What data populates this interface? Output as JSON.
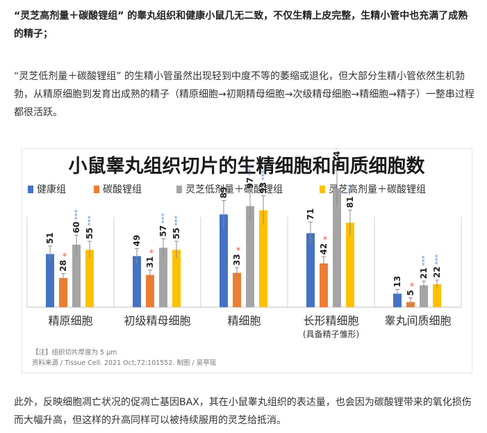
{
  "article": {
    "p1": "“灵芝高剂量＋碳酸锂组” 的睾丸组织和健康小鼠几无二致，不仅生精上皮完整，生精小管中也充满了成熟的精子；",
    "p2": "“灵芝低剂量＋碳酸锂组” 的生精小管虽然出现轻到中度不等的萎缩或退化，但大部分生精小管依然生机勃勃，从精原细胞到发育出成熟的精子（精原细胞→初期精母细胞→次级精母细胞→精细胞→精子）一整串过程都很活跃。",
    "p3": "此外，反映细胞凋亡状况的促凋亡基因BAX，其在小鼠睾丸组织的表达量，也会因为碳酸锂带来的氧化损伤而大幅升高，但这样的升高同样可以被持续服用的灵芝给抵消。"
  },
  "chart_data": {
    "type": "bar",
    "title": "小鼠睾丸组织切片的生精细胞和间质细胞数",
    "categories": [
      "精原细胞",
      "初级精母细胞",
      "精细胞",
      "长形精细胞",
      "睾丸间质细胞"
    ],
    "category_sublabels": [
      "",
      "",
      "",
      "(具备精子雏形)",
      ""
    ],
    "series": [
      {
        "name": "健康组",
        "color": "#4472c4",
        "values": [
          51,
          49,
          89,
          71,
          13
        ]
      },
      {
        "name": "碳酸锂组",
        "color": "#ed7d31",
        "values": [
          28,
          31,
          33,
          42,
          5
        ]
      },
      {
        "name": "灵芝低剂量＋碳酸锂组",
        "color": "#a5a5a5",
        "values": [
          60,
          57,
          97,
          114,
          21
        ]
      },
      {
        "name": "灵芝高剂量＋碳酸锂组",
        "color": "#ffc000",
        "values": [
          55,
          55,
          93,
          81,
          22
        ]
      }
    ],
    "ylim": [
      0,
      140
    ],
    "legend_position": "top",
    "significance": {
      "star_red": "*",
      "star_blue": "***",
      "colors": {
        "red": "#e8553e",
        "blue": "#5b8fd6"
      }
    },
    "footnote": "【注】组织切片厚度为 5 μm",
    "source": "资料来源 / Tissue Cell. 2021 Oct;72:101552.  制图 / 吴亭瑶"
  }
}
